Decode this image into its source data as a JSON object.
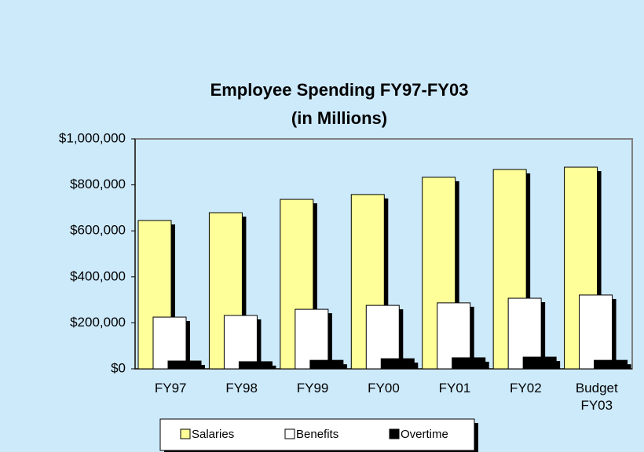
{
  "chart_data": {
    "type": "bar",
    "title": "Employee Spending FY97-FY03",
    "subtitle": "(in Millions)",
    "categories": [
      "FY97",
      "FY98",
      "FY99",
      "FY00",
      "FY01",
      "FY02",
      "Budget FY03"
    ],
    "series": [
      {
        "name": "Salaries",
        "color": "#ffff99",
        "values": [
          645000,
          679000,
          737000,
          758000,
          833000,
          867000,
          877000
        ]
      },
      {
        "name": "Benefits",
        "color": "#ffffff",
        "values": [
          225000,
          232000,
          259000,
          276000,
          287000,
          307000,
          321000
        ]
      },
      {
        "name": "Overtime",
        "color": "#000000",
        "values": [
          34000,
          31000,
          37000,
          44000,
          48000,
          51000,
          37000
        ]
      }
    ],
    "ylim": [
      0,
      1000000
    ],
    "yticks": [
      {
        "value": 0,
        "label": "$0"
      },
      {
        "value": 200000,
        "label": "$200,000"
      },
      {
        "value": 400000,
        "label": "$400,000"
      },
      {
        "value": 600000,
        "label": "$600,000"
      },
      {
        "value": 800000,
        "label": "$800,000"
      },
      {
        "value": 1000000,
        "label": "$1,000,000"
      }
    ],
    "grid": false,
    "legend": "bottom"
  }
}
